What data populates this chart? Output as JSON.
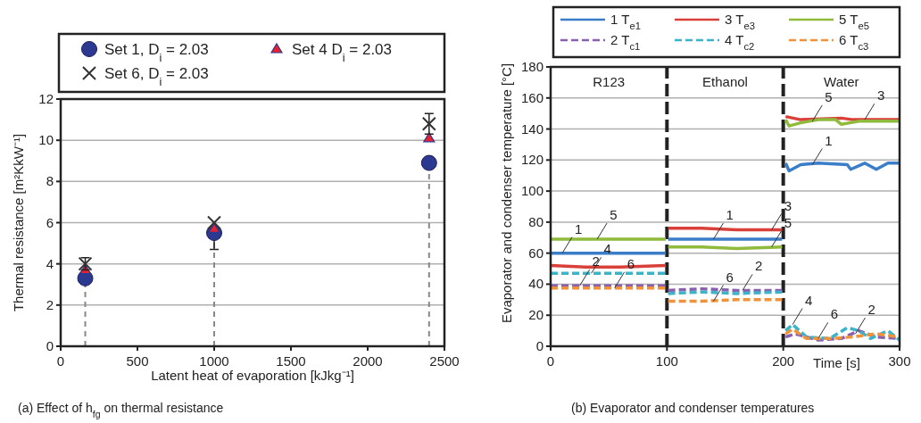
{
  "chart_data": [
    {
      "type": "scatter",
      "xlabel": "Latent heat of evaporation [kJkg⁻¹]",
      "ylabel": "Thermal resistance [m²KkW⁻¹]",
      "xlim": [
        0,
        2500
      ],
      "xticks": [
        0,
        500,
        1000,
        1500,
        2000,
        2500
      ],
      "ylim": [
        0,
        12
      ],
      "yticks": [
        0,
        2,
        4,
        6,
        8,
        10,
        12
      ],
      "grid": "y",
      "legend": "top",
      "annotations": [
        "(a) Effect of h$_{fg}$ on thermal resistance"
      ],
      "ref_lines": [
        {
          "axis": "x",
          "value": 160,
          "color": "#888888",
          "line_style": "dashed"
        },
        {
          "axis": "x",
          "value": 1000,
          "color": "#888888",
          "line_style": "dashed"
        },
        {
          "axis": "x",
          "value": 2400,
          "color": "#888888",
          "line_style": "dashed"
        }
      ],
      "series": [
        {
          "name": "Set 1, D$_{i}$ = 2.03",
          "color": "#2b3990",
          "marker": "circle",
          "x": [
            160,
            1000,
            2400
          ],
          "values": [
            3.3,
            5.5,
            8.9
          ],
          "errors": [
            null,
            [
              4.7,
              5.5
            ],
            null
          ]
        },
        {
          "name": "Set 4 D$_{i}$ = 2.03",
          "color": "#e8212e",
          "marker": "triangle",
          "x": [
            160,
            1000,
            2400
          ],
          "values": [
            3.7,
            5.7,
            10.1
          ]
        },
        {
          "name": "Set 6, D$_{i}$ = 2.03",
          "color": "#333333",
          "marker": "cross",
          "x": [
            160,
            1000,
            2400
          ],
          "values": [
            4.0,
            6.0,
            10.8
          ],
          "errors": [
            [
              3.7,
              4.3
            ],
            null,
            [
              10.3,
              11.3
            ]
          ]
        }
      ]
    },
    {
      "type": "line",
      "xlabel": "Time [s]",
      "ylabel": "Evaporator and condenser temperature [°C]",
      "xlim": [
        0,
        300
      ],
      "xticks": [
        0,
        100,
        200,
        300
      ],
      "ylim": [
        0,
        180
      ],
      "yticks": [
        0,
        20,
        40,
        60,
        80,
        100,
        120,
        140,
        160,
        180
      ],
      "grid": "y",
      "legend": "top",
      "ref_lines": [
        {
          "axis": "x",
          "value": 100,
          "color": "#222222",
          "line_style": "dashed"
        },
        {
          "axis": "x",
          "value": 200,
          "color": "#222222",
          "line_style": "dashed"
        }
      ],
      "annotations": [
        "(b) Evaporator and condenser temperatures",
        "R123",
        "Ethanol",
        "Water",
        {
          "text": "1",
          "x": 10,
          "y": 60
        },
        {
          "text": "5",
          "x": 40,
          "y": 69
        },
        {
          "text": "4",
          "x": 35,
          "y": 47
        },
        {
          "text": "2",
          "x": 25,
          "y": 39
        },
        {
          "text": "6",
          "x": 55,
          "y": 37.5
        },
        {
          "text": "1",
          "x": 140,
          "y": 69
        },
        {
          "text": "3",
          "x": 190,
          "y": 75
        },
        {
          "text": "5",
          "x": 190,
          "y": 64
        },
        {
          "text": "2",
          "x": 165,
          "y": 36
        },
        {
          "text": "6",
          "x": 140,
          "y": 29
        },
        {
          "text": "3",
          "x": 270,
          "y": 146
        },
        {
          "text": "5",
          "x": 225,
          "y": 145
        },
        {
          "text": "1",
          "x": 225,
          "y": 117
        },
        {
          "text": "4",
          "x": 208,
          "y": 14
        },
        {
          "text": "6",
          "x": 230,
          "y": 5
        },
        {
          "text": "2",
          "x": 262,
          "y": 8
        }
      ],
      "series": [
        {
          "name": "1 T$_{e1}$",
          "color": "#3a7dc9",
          "line_style": "solid",
          "x": [
            0,
            30,
            60,
            99,
            100,
            101,
            130,
            160,
            199,
            200,
            202,
            205,
            215,
            230,
            255,
            258,
            270,
            280,
            290,
            300
          ],
          "values": [
            60,
            60,
            60,
            60,
            null,
            69,
            69,
            69,
            69,
            null,
            118,
            113,
            117,
            118,
            117,
            114,
            118,
            114,
            118,
            118
          ]
        },
        {
          "name": "2 T$_{c1}$",
          "color": "#8a5fb0",
          "line_style": "dashed",
          "x": [
            0,
            30,
            60,
            99,
            100,
            101,
            130,
            160,
            199,
            200,
            202,
            210,
            230,
            250,
            265,
            280,
            300
          ],
          "values": [
            39,
            39,
            39,
            39,
            null,
            36,
            37,
            36,
            36,
            null,
            6,
            8,
            4,
            5,
            10,
            6,
            5
          ]
        },
        {
          "name": "3 T$_{e3}$",
          "color": "#d9403a",
          "line_style": "solid",
          "x": [
            0,
            30,
            60,
            99,
            100,
            101,
            130,
            160,
            199,
            200,
            202,
            215,
            250,
            260,
            300
          ],
          "values": [
            52,
            51,
            51,
            52,
            null,
            76,
            76,
            75,
            75,
            null,
            148,
            146,
            147,
            146,
            146
          ]
        },
        {
          "name": "4 T$_{c2}$",
          "color": "#3bb4c8",
          "line_style": "dashed",
          "x": [
            0,
            30,
            60,
            99,
            100,
            101,
            130,
            160,
            199,
            200,
            202,
            208,
            220,
            240,
            255,
            265,
            275,
            290,
            300
          ],
          "values": [
            47,
            47,
            47,
            47,
            null,
            34,
            35,
            34,
            35,
            null,
            10,
            14,
            6,
            5,
            12,
            10,
            5,
            10,
            4
          ]
        },
        {
          "name": "5 T$_{e5}$",
          "color": "#8fba3c",
          "line_style": "solid",
          "x": [
            0,
            30,
            60,
            99,
            100,
            101,
            130,
            160,
            199,
            200,
            202,
            205,
            215,
            230,
            245,
            250,
            265,
            300
          ],
          "values": [
            69,
            69,
            69,
            69,
            null,
            64,
            64,
            63,
            64,
            null,
            146,
            142,
            144,
            146,
            146,
            143,
            145,
            145
          ]
        },
        {
          "name": "6 T$_{c3}$",
          "color": "#f0923a",
          "line_style": "dashed",
          "x": [
            0,
            30,
            60,
            99,
            100,
            101,
            130,
            160,
            199,
            200,
            202,
            208,
            220,
            240,
            260,
            280,
            300
          ],
          "values": [
            37.5,
            37.5,
            37.5,
            37.5,
            null,
            29,
            29,
            30,
            30,
            null,
            8,
            11,
            5,
            5,
            6,
            8,
            6
          ]
        }
      ]
    }
  ]
}
